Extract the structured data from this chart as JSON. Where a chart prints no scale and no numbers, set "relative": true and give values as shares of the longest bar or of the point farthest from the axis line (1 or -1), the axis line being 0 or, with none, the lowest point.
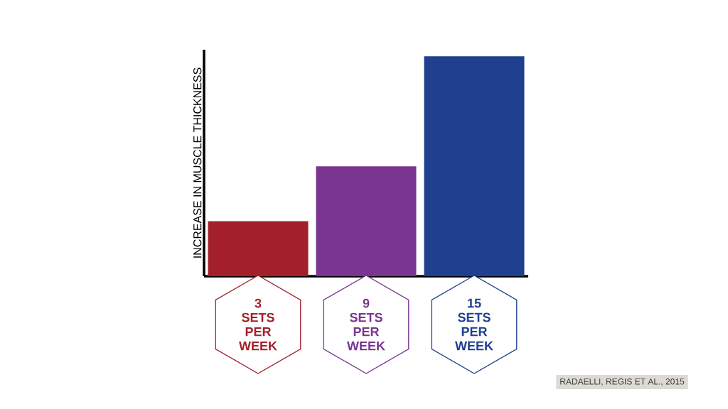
{
  "chart_data": {
    "type": "bar",
    "relative": true,
    "ylabel": "INCREASE IN MUSCLE THICKNESS",
    "categories": [
      "3 SETS PER WEEK",
      "9 SETS PER WEEK",
      "15 SETS PER WEEK"
    ],
    "values": [
      0.25,
      0.5,
      1
    ],
    "colors": [
      "#a3202a",
      "#7a3590",
      "#1f3f8f"
    ],
    "annotations": [
      "RADAELLI, REGIS ET AL., 2015"
    ]
  }
}
